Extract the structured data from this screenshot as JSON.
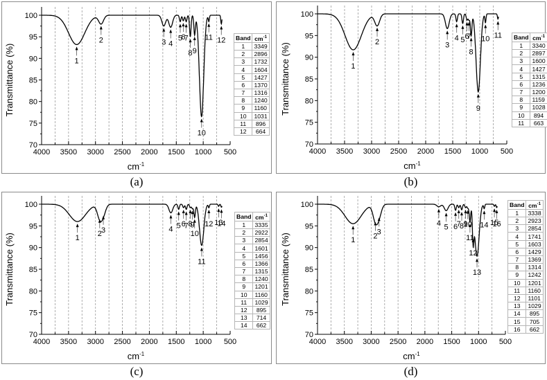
{
  "figure": {
    "panels": [
      {
        "id": "a",
        "caption": "(a)",
        "ylabel": "Transmittance (%)",
        "xlabel": "cm",
        "xlabel_sup": "-1",
        "table_header": {
          "band": "Band",
          "unit": "cm",
          "unit_sup": "-1"
        },
        "bands": [
          {
            "band": "1",
            "wavenumber": "3349"
          },
          {
            "band": "2",
            "wavenumber": "2896"
          },
          {
            "band": "3",
            "wavenumber": "1732"
          },
          {
            "band": "4",
            "wavenumber": "1604"
          },
          {
            "band": "5",
            "wavenumber": "1427"
          },
          {
            "band": "6",
            "wavenumber": "1370"
          },
          {
            "band": "7",
            "wavenumber": "1316"
          },
          {
            "band": "8",
            "wavenumber": "1240"
          },
          {
            "band": "9",
            "wavenumber": "1160"
          },
          {
            "band": "10",
            "wavenumber": "1031"
          },
          {
            "band": "11",
            "wavenumber": "896"
          },
          {
            "band": "12",
            "wavenumber": "664"
          }
        ]
      },
      {
        "id": "b",
        "caption": "(b)",
        "ylabel": "Transmittance (%)",
        "xlabel": "cm",
        "xlabel_sup": "-1",
        "table_header": {
          "band": "Band",
          "unit": "cm",
          "unit_sup": "-1"
        },
        "bands": [
          {
            "band": "1",
            "wavenumber": "3340"
          },
          {
            "band": "2",
            "wavenumber": "2897"
          },
          {
            "band": "3",
            "wavenumber": "1600"
          },
          {
            "band": "4",
            "wavenumber": "1427"
          },
          {
            "band": "5",
            "wavenumber": "1315"
          },
          {
            "band": "6",
            "wavenumber": "1236"
          },
          {
            "band": "7",
            "wavenumber": "1200"
          },
          {
            "band": "8",
            "wavenumber": "1159"
          },
          {
            "band": "9",
            "wavenumber": "1028"
          },
          {
            "band": "10",
            "wavenumber": "894"
          },
          {
            "band": "11",
            "wavenumber": "663"
          }
        ]
      },
      {
        "id": "c",
        "caption": "(c)",
        "ylabel": "Transmittance (%)",
        "xlabel": "cm",
        "xlabel_sup": "-1",
        "table_header": {
          "band": "Band",
          "unit": "cm",
          "unit_sup": "-1"
        },
        "bands": [
          {
            "band": "1",
            "wavenumber": "3335"
          },
          {
            "band": "2",
            "wavenumber": "2922"
          },
          {
            "band": "3",
            "wavenumber": "2854"
          },
          {
            "band": "4",
            "wavenumber": "1601"
          },
          {
            "band": "5",
            "wavenumber": "1456"
          },
          {
            "band": "6",
            "wavenumber": "1366"
          },
          {
            "band": "7",
            "wavenumber": "1315"
          },
          {
            "band": "8",
            "wavenumber": "1240"
          },
          {
            "band": "9",
            "wavenumber": "1201"
          },
          {
            "band": "10",
            "wavenumber": "1160"
          },
          {
            "band": "11",
            "wavenumber": "1029"
          },
          {
            "band": "12",
            "wavenumber": "895"
          },
          {
            "band": "13",
            "wavenumber": "714"
          },
          {
            "band": "14",
            "wavenumber": "662"
          }
        ]
      },
      {
        "id": "d",
        "caption": "(d)",
        "ylabel": "Transmittance (%)",
        "xlabel": "cm",
        "xlabel_sup": "-1",
        "table_header": {
          "band": "Band",
          "unit": "cm",
          "unit_sup": "-1"
        },
        "bands": [
          {
            "band": "1",
            "wavenumber": "3338"
          },
          {
            "band": "2",
            "wavenumber": "2923"
          },
          {
            "band": "3",
            "wavenumber": "2854"
          },
          {
            "band": "4",
            "wavenumber": "1741"
          },
          {
            "band": "5",
            "wavenumber": "1603"
          },
          {
            "band": "6",
            "wavenumber": "1429"
          },
          {
            "band": "7",
            "wavenumber": "1369"
          },
          {
            "band": "8",
            "wavenumber": "1314"
          },
          {
            "band": "9",
            "wavenumber": "1242"
          },
          {
            "band": "10",
            "wavenumber": "1201"
          },
          {
            "band": "11",
            "wavenumber": "1160"
          },
          {
            "band": "12",
            "wavenumber": "1101"
          },
          {
            "band": "13",
            "wavenumber": "1029"
          },
          {
            "band": "14",
            "wavenumber": "895"
          },
          {
            "band": "15",
            "wavenumber": "705"
          },
          {
            "band": "16",
            "wavenumber": "662"
          }
        ]
      }
    ]
  },
  "chart_data": [
    {
      "type": "line",
      "panel": "(a)",
      "title": "",
      "xlabel": "cm-1",
      "ylabel": "Transmittance (%)",
      "xlim": [
        4000,
        500
      ],
      "ylim": [
        70,
        100
      ],
      "x_ticks": [
        4000,
        3500,
        3000,
        2500,
        2000,
        1500,
        1000,
        500
      ],
      "y_ticks": [
        70,
        75,
        80,
        85,
        90,
        95,
        100
      ],
      "grid": "vertical dashed every 250",
      "legend": "band table right",
      "peaks": [
        {
          "band": 1,
          "x": 3349,
          "y": 93.2
        },
        {
          "band": 2,
          "x": 2896,
          "y": 98.0
        },
        {
          "band": 3,
          "x": 1732,
          "y": 97.5
        },
        {
          "band": 4,
          "x": 1604,
          "y": 97.2
        },
        {
          "band": 5,
          "x": 1427,
          "y": 98.5
        },
        {
          "band": 6,
          "x": 1370,
          "y": 98.7
        },
        {
          "band": 7,
          "x": 1316,
          "y": 98.5
        },
        {
          "band": 8,
          "x": 1240,
          "y": 95.0
        },
        {
          "band": 9,
          "x": 1160,
          "y": 95.5
        },
        {
          "band": 10,
          "x": 1031,
          "y": 76.5
        },
        {
          "band": 11,
          "x": 896,
          "y": 98.6
        },
        {
          "band": 12,
          "x": 664,
          "y": 98.0
        }
      ]
    },
    {
      "type": "line",
      "panel": "(b)",
      "title": "",
      "xlabel": "cm-1",
      "ylabel": "Transmittance (%)",
      "xlim": [
        4000,
        500
      ],
      "ylim": [
        70,
        100
      ],
      "x_ticks": [
        4000,
        3500,
        3000,
        2500,
        2000,
        1500,
        1000,
        500
      ],
      "y_ticks": [
        70,
        75,
        80,
        85,
        90,
        95,
        100
      ],
      "grid": "vertical dashed every 250",
      "legend": "band table right",
      "peaks": [
        {
          "band": 1,
          "x": 3340,
          "y": 91.7
        },
        {
          "band": 2,
          "x": 2897,
          "y": 97.3
        },
        {
          "band": 3,
          "x": 1600,
          "y": 96.6
        },
        {
          "band": 4,
          "x": 1427,
          "y": 98.2
        },
        {
          "band": 5,
          "x": 1315,
          "y": 97.8
        },
        {
          "band": 6,
          "x": 1236,
          "y": 98.6
        },
        {
          "band": 7,
          "x": 1200,
          "y": 98.6
        },
        {
          "band": 8,
          "x": 1159,
          "y": 95.0
        },
        {
          "band": 9,
          "x": 1028,
          "y": 82.0
        },
        {
          "band": 10,
          "x": 894,
          "y": 98.0
        },
        {
          "band": 11,
          "x": 663,
          "y": 98.8
        }
      ]
    },
    {
      "type": "line",
      "panel": "(c)",
      "title": "",
      "xlabel": "cm-1",
      "ylabel": "Transmittance (%)",
      "xlim": [
        4000,
        500
      ],
      "ylim": [
        70,
        100
      ],
      "x_ticks": [
        4000,
        3500,
        3000,
        2500,
        2000,
        1500,
        1000,
        500
      ],
      "y_ticks": [
        70,
        75,
        80,
        85,
        90,
        95,
        100
      ],
      "grid": "vertical dashed every 250",
      "legend": "band table right",
      "peaks": [
        {
          "band": 1,
          "x": 3335,
          "y": 96.0
        },
        {
          "band": 2,
          "x": 2922,
          "y": 97.0
        },
        {
          "band": 3,
          "x": 2854,
          "y": 97.8
        },
        {
          "band": 4,
          "x": 1601,
          "y": 98.0
        },
        {
          "band": 5,
          "x": 1456,
          "y": 98.8
        },
        {
          "band": 6,
          "x": 1366,
          "y": 99.2
        },
        {
          "band": 7,
          "x": 1315,
          "y": 98.8
        },
        {
          "band": 8,
          "x": 1240,
          "y": 99.2
        },
        {
          "band": 9,
          "x": 1201,
          "y": 99.0
        },
        {
          "band": 10,
          "x": 1160,
          "y": 97.0
        },
        {
          "band": 11,
          "x": 1029,
          "y": 90.5
        },
        {
          "band": 12,
          "x": 895,
          "y": 99.2
        },
        {
          "band": 13,
          "x": 714,
          "y": 99.5
        },
        {
          "band": 14,
          "x": 662,
          "y": 99.3
        }
      ]
    },
    {
      "type": "line",
      "panel": "(d)",
      "title": "",
      "xlabel": "cm-1",
      "ylabel": "Transmittance (%)",
      "xlim": [
        4000,
        500
      ],
      "ylim": [
        70,
        100
      ],
      "x_ticks": [
        4000,
        3500,
        3000,
        2500,
        2000,
        1500,
        1000,
        500
      ],
      "y_ticks": [
        70,
        75,
        80,
        85,
        90,
        95,
        100
      ],
      "grid": "vertical dashed every 250",
      "legend": "band table right",
      "peaks": [
        {
          "band": 1,
          "x": 3338,
          "y": 95.5
        },
        {
          "band": 2,
          "x": 2923,
          "y": 96.4
        },
        {
          "band": 3,
          "x": 2854,
          "y": 97.4
        },
        {
          "band": 4,
          "x": 1741,
          "y": 99.4
        },
        {
          "band": 5,
          "x": 1603,
          "y": 98.5
        },
        {
          "band": 6,
          "x": 1429,
          "y": 98.6
        },
        {
          "band": 7,
          "x": 1369,
          "y": 99.2
        },
        {
          "band": 8,
          "x": 1314,
          "y": 98.7
        },
        {
          "band": 9,
          "x": 1242,
          "y": 99.2
        },
        {
          "band": 10,
          "x": 1201,
          "y": 99.1
        },
        {
          "band": 11,
          "x": 1160,
          "y": 96.0
        },
        {
          "band": 12,
          "x": 1101,
          "y": 92.5
        },
        {
          "band": 13,
          "x": 1029,
          "y": 88.0
        },
        {
          "band": 14,
          "x": 895,
          "y": 99.0
        },
        {
          "band": 15,
          "x": 705,
          "y": 99.5
        },
        {
          "band": 16,
          "x": 662,
          "y": 99.2
        }
      ]
    }
  ]
}
